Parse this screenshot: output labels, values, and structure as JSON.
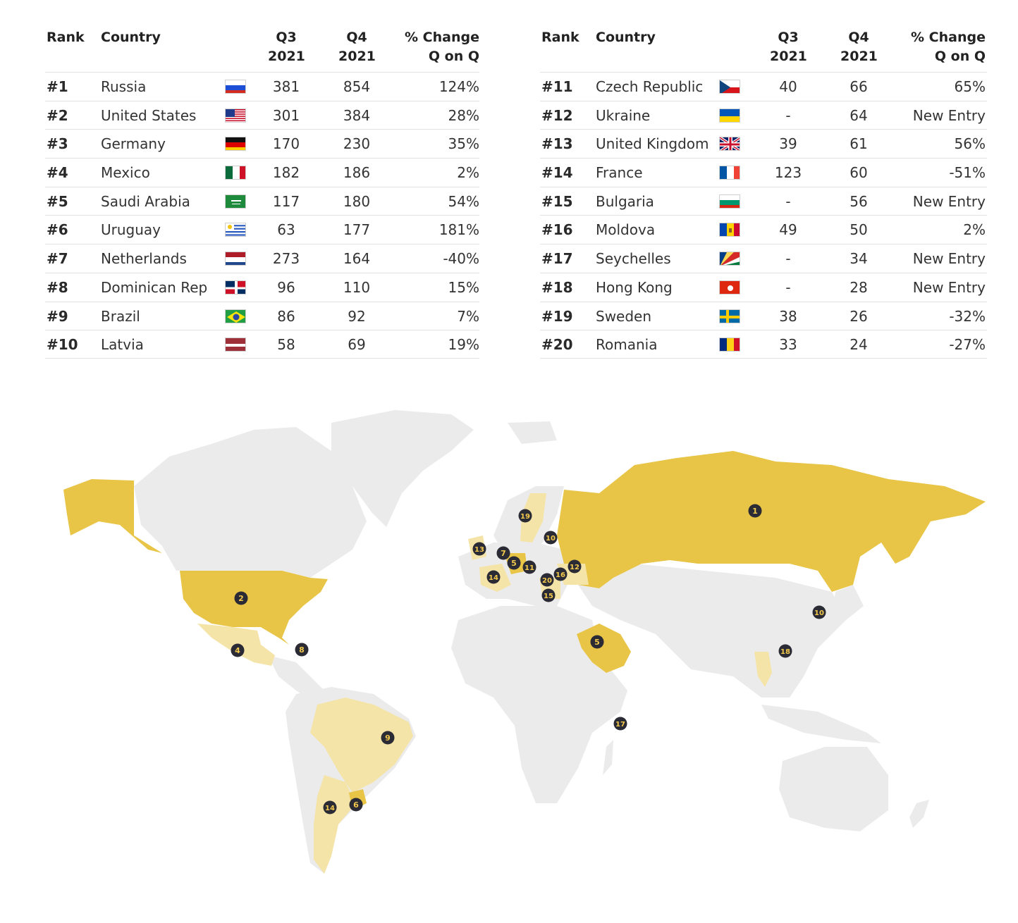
{
  "headers": {
    "rank": "Rank",
    "country": "Country",
    "q3_line1": "Q3",
    "q3_line2": "2021",
    "q4_line1": "Q4",
    "q4_line2": "2021",
    "change_line1": "% Change",
    "change_line2": "Q on Q"
  },
  "left_rows": [
    {
      "rank": "#1",
      "country": "Russia",
      "flag": "russia-flag",
      "q3": "381",
      "q4": "854",
      "change": "124%"
    },
    {
      "rank": "#2",
      "country": "United States",
      "flag": "usa-flag",
      "q3": "301",
      "q4": "384",
      "change": "28%"
    },
    {
      "rank": "#3",
      "country": "Germany",
      "flag": "germany-flag",
      "q3": "170",
      "q4": "230",
      "change": "35%"
    },
    {
      "rank": "#4",
      "country": "Mexico",
      "flag": "mexico-flag",
      "q3": "182",
      "q4": "186",
      "change": "2%"
    },
    {
      "rank": "#5",
      "country": "Saudi Arabia",
      "flag": "saudi-arabia-flag",
      "q3": "117",
      "q4": "180",
      "change": "54%"
    },
    {
      "rank": "#6",
      "country": "Uruguay",
      "flag": "uruguay-flag",
      "q3": "63",
      "q4": "177",
      "change": "181%"
    },
    {
      "rank": "#7",
      "country": "Netherlands",
      "flag": "netherlands-flag",
      "q3": "273",
      "q4": "164",
      "change": "-40%"
    },
    {
      "rank": "#8",
      "country": "Dominican Rep",
      "flag": "dominican-rep-flag",
      "q3": "96",
      "q4": "110",
      "change": "15%"
    },
    {
      "rank": "#9",
      "country": "Brazil",
      "flag": "brazil-flag",
      "q3": "86",
      "q4": "92",
      "change": "7%"
    },
    {
      "rank": "#10",
      "country": "Latvia",
      "flag": "latvia-flag",
      "q3": "58",
      "q4": "69",
      "change": "19%"
    }
  ],
  "right_rows": [
    {
      "rank": "#11",
      "country": "Czech Republic",
      "flag": "czech-flag",
      "q3": "40",
      "q4": "66",
      "change": "65%"
    },
    {
      "rank": "#12",
      "country": "Ukraine",
      "flag": "ukraine-flag",
      "q3": "-",
      "q4": "64",
      "change": "New Entry"
    },
    {
      "rank": "#13",
      "country": "United Kingdom",
      "flag": "uk-flag",
      "q3": "39",
      "q4": "61",
      "change": "56%"
    },
    {
      "rank": "#14",
      "country": "France",
      "flag": "france-flag",
      "q3": "123",
      "q4": "60",
      "change": "-51%"
    },
    {
      "rank": "#15",
      "country": "Bulgaria",
      "flag": "bulgaria-flag",
      "q3": "-",
      "q4": "56",
      "change": "New Entry"
    },
    {
      "rank": "#16",
      "country": "Moldova",
      "flag": "moldova-flag",
      "q3": "49",
      "q4": "50",
      "change": "2%"
    },
    {
      "rank": "#17",
      "country": "Seychelles",
      "flag": "seychelles-flag",
      "q3": "-",
      "q4": "34",
      "change": "New Entry"
    },
    {
      "rank": "#18",
      "country": "Hong Kong",
      "flag": "hong-kong-flag",
      "q3": "-",
      "q4": "28",
      "change": "New Entry"
    },
    {
      "rank": "#19",
      "country": "Sweden",
      "flag": "sweden-flag",
      "q3": "38",
      "q4": "26",
      "change": "-32%"
    },
    {
      "rank": "#20",
      "country": "Romania",
      "flag": "romania-flag",
      "q3": "33",
      "q4": "24",
      "change": "-27%"
    }
  ],
  "map": {
    "colors": {
      "land": "#ebebeb",
      "highlight": "#e8c547",
      "highlight_light": "#f5e4a8",
      "marker": "#2b2b35",
      "marker_text": "#f2c94c"
    },
    "markers": [
      {
        "label": "1"
      },
      {
        "label": "2"
      },
      {
        "label": "4"
      },
      {
        "label": "8"
      },
      {
        "label": "5"
      },
      {
        "label": "19"
      },
      {
        "label": "10"
      },
      {
        "label": "13"
      },
      {
        "label": "7"
      },
      {
        "label": "5"
      },
      {
        "label": "11"
      },
      {
        "label": "12"
      },
      {
        "label": "16"
      },
      {
        "label": "20"
      },
      {
        "label": "14"
      },
      {
        "label": "15"
      },
      {
        "label": "10"
      },
      {
        "label": "18"
      },
      {
        "label": "17"
      },
      {
        "label": "9"
      },
      {
        "label": "14"
      },
      {
        "label": "6"
      }
    ]
  }
}
